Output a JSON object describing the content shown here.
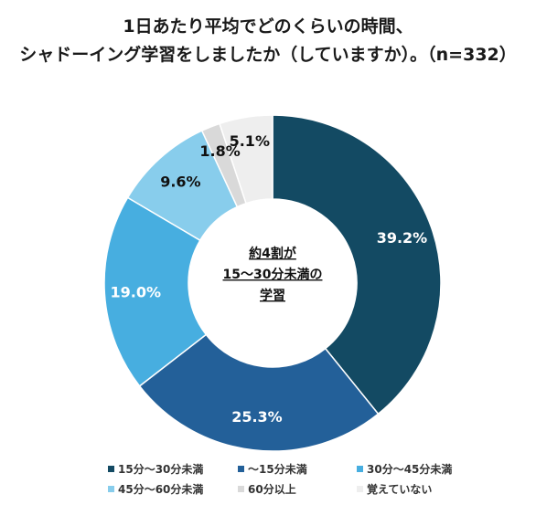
{
  "title": {
    "line1": "1日あたり平均でどのくらいの時間、",
    "line2": "シャドーイング学習をしましたか（していますか）。（n=332）"
  },
  "center_label": {
    "line1": "約4割が",
    "line2": "15〜30分未満の",
    "line3": "学習"
  },
  "chart_data": {
    "type": "pie",
    "donut": true,
    "title": "1日あたり平均でどのくらいの時間、シャドーイング学習をしましたか（していますか）。（n=332）",
    "categories": [
      "15分〜30分未満",
      "〜15分未満",
      "30分〜45分未満",
      "45分〜60分未満",
      "60分以上",
      "覚えていない"
    ],
    "values": [
      39.2,
      25.3,
      19.0,
      9.6,
      1.8,
      5.1
    ],
    "labels": [
      "39.2%",
      "25.3%",
      "19.0%",
      "9.6%",
      "1.8%",
      "5.1%"
    ],
    "colors": [
      "#134a63",
      "#236099",
      "#47aee0",
      "#88cdec",
      "#d9d9d9",
      "#eeeeee"
    ],
    "legend_position": "bottom"
  }
}
